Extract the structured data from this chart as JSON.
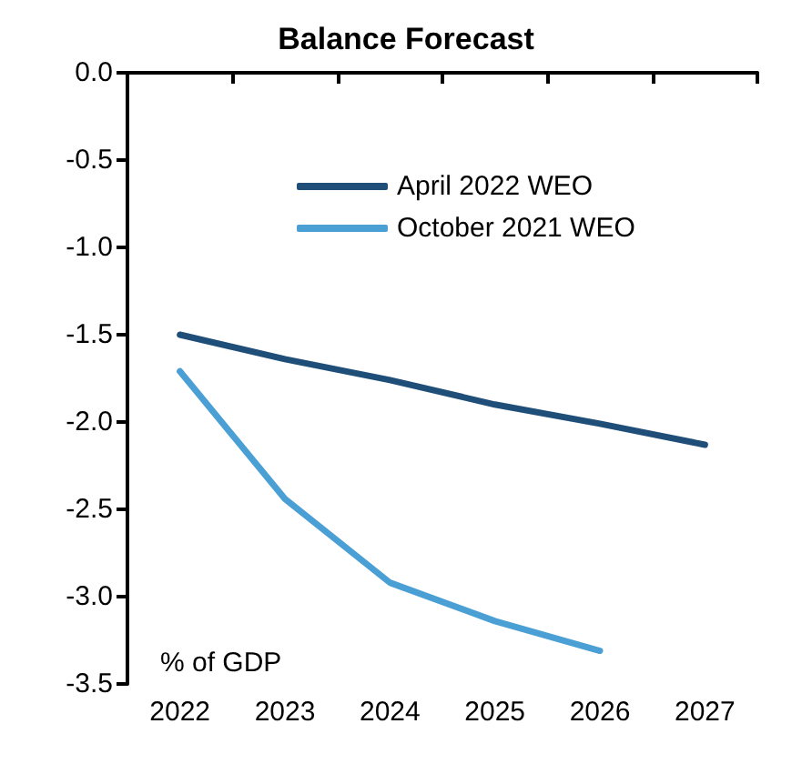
{
  "chart_data": {
    "type": "line",
    "title": "Balance Forecast",
    "ylabel": "% of GDP",
    "categories": [
      "2022",
      "2023",
      "2024",
      "2025",
      "2026",
      "2027"
    ],
    "series": [
      {
        "name": "April 2022 WEO",
        "color": "#1f4e79",
        "values": [
          -1.5,
          -1.64,
          -1.76,
          -1.9,
          -2.01,
          -2.13
        ]
      },
      {
        "name": "October 2021 WEO",
        "color": "#4a9fd4",
        "values": [
          -1.71,
          -2.44,
          -2.92,
          -3.14,
          -3.31,
          null
        ]
      }
    ],
    "ylim": [
      -3.5,
      0
    ],
    "yticks": [
      {
        "value": 0,
        "label": "0.0"
      },
      -0.5,
      {
        "value": -1,
        "label": "-1.0"
      },
      -1.5,
      {
        "value": -2,
        "label": "-2.0"
      },
      -2.5,
      {
        "value": -3,
        "label": "-3.0"
      },
      -3.5
    ],
    "grid": false,
    "legend": "top",
    "marker": "none",
    "line_style": "solid"
  }
}
